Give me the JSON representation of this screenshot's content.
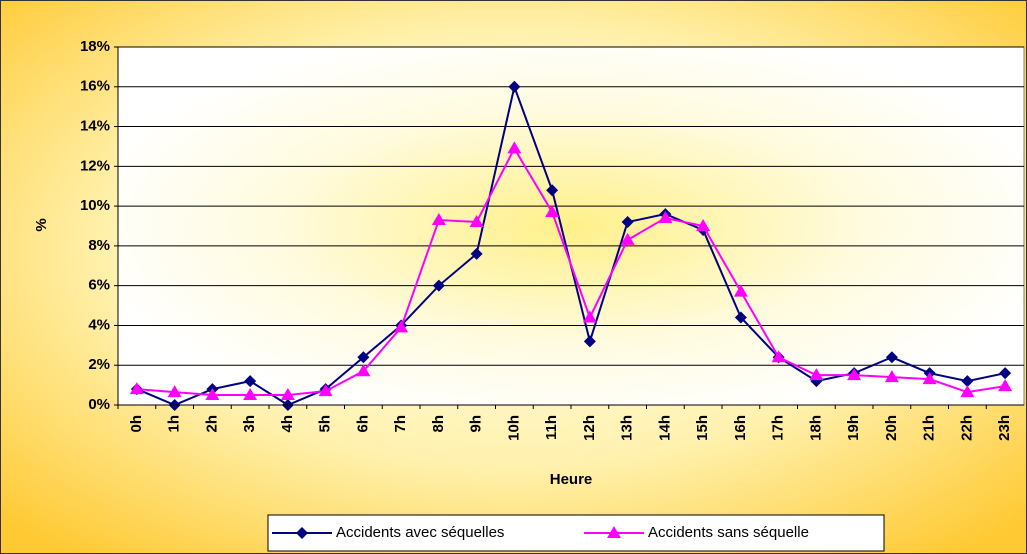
{
  "chart_data": {
    "type": "line",
    "xlabel": "Heure",
    "ylabel": "%",
    "categories": [
      "0h",
      "1h",
      "2h",
      "3h",
      "4h",
      "5h",
      "6h",
      "7h",
      "8h",
      "9h",
      "10h",
      "11h",
      "12h",
      "13h",
      "14h",
      "15h",
      "16h",
      "17h",
      "18h",
      "19h",
      "20h",
      "21h",
      "22h",
      "23h"
    ],
    "series": [
      {
        "name": "Accidents avec séquelles",
        "color": "#000080",
        "marker": "diamond",
        "values": [
          0.8,
          0,
          0.8,
          1.2,
          0,
          0.8,
          2.4,
          4.0,
          6.0,
          7.6,
          16.0,
          10.8,
          3.2,
          9.2,
          9.6,
          8.8,
          4.4,
          2.4,
          1.2,
          1.6,
          2.4,
          1.6,
          1.2,
          1.6
        ]
      },
      {
        "name": "Accidents sans séquelle",
        "color": "#ff00ff",
        "marker": "triangle",
        "values": [
          0.8,
          0.65,
          0.5,
          0.5,
          0.5,
          0.7,
          1.7,
          3.9,
          9.3,
          9.2,
          12.9,
          9.7,
          4.4,
          8.3,
          9.4,
          9.0,
          5.7,
          2.4,
          1.5,
          1.5,
          1.4,
          1.3,
          0.65,
          0.95
        ]
      }
    ],
    "ylim": [
      0,
      18
    ],
    "yticks": [
      {
        "value": 0,
        "label": "0%"
      },
      {
        "value": 2,
        "label": "2%"
      },
      {
        "value": 4,
        "label": "4%"
      },
      {
        "value": 6,
        "label": "6%"
      },
      {
        "value": 8,
        "label": "8%"
      },
      {
        "value": 10,
        "label": "10%"
      },
      {
        "value": 12,
        "label": "12%"
      },
      {
        "value": 14,
        "label": "14%"
      },
      {
        "value": 16,
        "label": "16%"
      },
      {
        "value": 18,
        "label": "18%"
      }
    ],
    "grid": true,
    "legend": "bottom"
  }
}
